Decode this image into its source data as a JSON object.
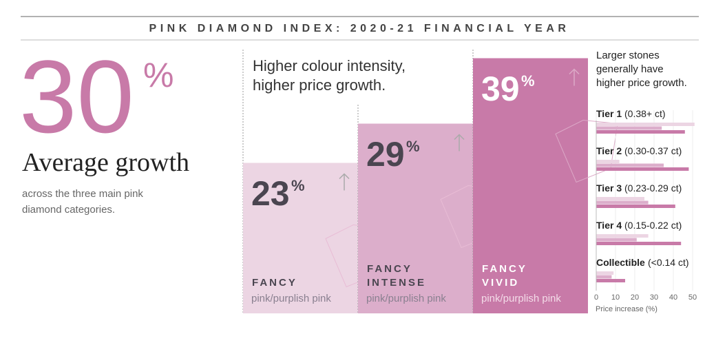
{
  "header": {
    "title": "PINK DIAMOND INDEX: 2020-21 FINANCIAL YEAR"
  },
  "headline": {
    "value": 30,
    "unit": "%",
    "label": "Average growth",
    "description": "across the three main pink diamond categories."
  },
  "chart_data": [
    {
      "type": "bar",
      "subtitle": [
        "Higher colour intensity,",
        "higher price growth."
      ],
      "unit": "%",
      "categories": [
        "FANCY",
        "FANCY INTENSE",
        "FANCY VIVID"
      ],
      "sublabels": [
        "pink/purplish pink",
        "pink/purplish pink",
        "pink/purplish pink"
      ],
      "values": [
        23,
        29,
        39
      ],
      "colors": [
        "#ecd5e3",
        "#dcaecb",
        "#c87aa8"
      ],
      "ylim": [
        0,
        40
      ]
    },
    {
      "type": "barh",
      "title": [
        "Larger stones",
        "generally have",
        "higher price growth."
      ],
      "categories": [
        "Tier 1",
        "Tier 2",
        "Tier 3",
        "Tier 4",
        "Collectible"
      ],
      "ranges": [
        "(0.38+ ct)",
        "(0.30-0.37 ct)",
        "(0.23-0.29 ct)",
        "(0.15-0.22 ct)",
        "(<0.14 ct)"
      ],
      "series": [
        {
          "name": "FANCY",
          "color": "#ecd5e3",
          "values": [
            51,
            12,
            25,
            27,
            9
          ]
        },
        {
          "name": "FANCY INTENSE",
          "color": "#dcaecb",
          "values": [
            34,
            35,
            27,
            21,
            8
          ]
        },
        {
          "name": "FANCY VIVID",
          "color": "#c87aa8",
          "values": [
            46,
            48,
            41,
            44,
            15
          ]
        }
      ],
      "xlim": [
        0,
        50
      ],
      "xticks": [
        0,
        10,
        20,
        30,
        40,
        50
      ],
      "xlabel": "Price increase (%)"
    }
  ]
}
